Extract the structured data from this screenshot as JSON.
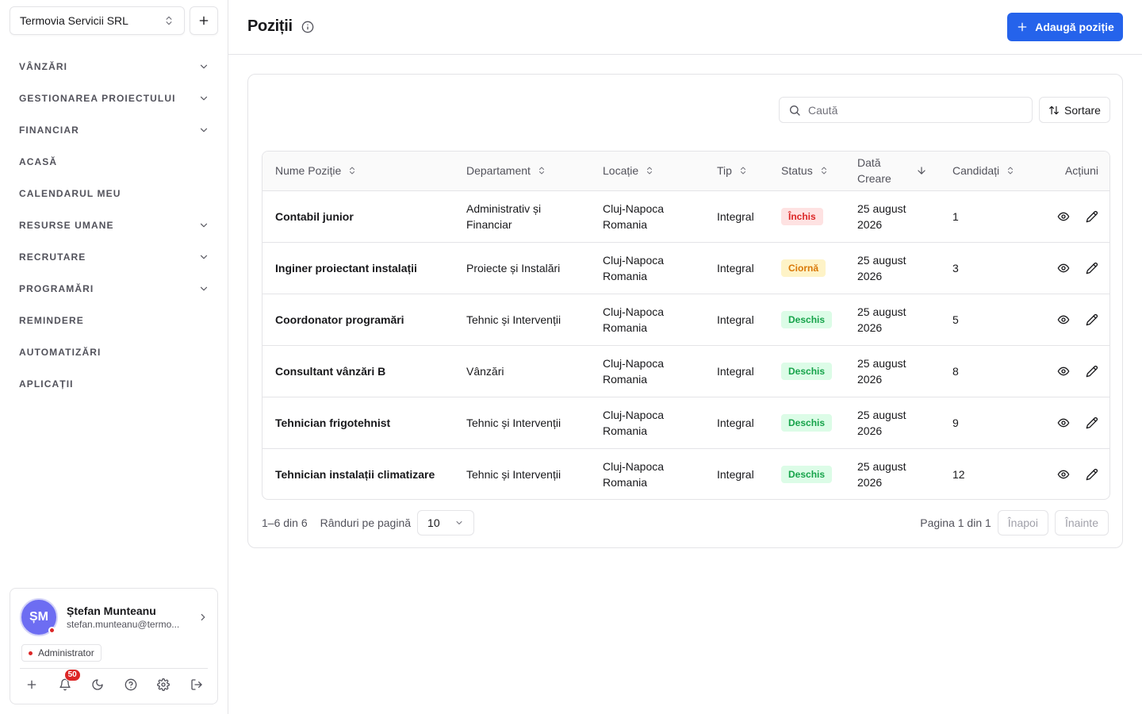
{
  "sidebar": {
    "org_name": "Termovia Servicii SRL",
    "nav": [
      {
        "label": "VÂNZĂRI",
        "has_chevron": true
      },
      {
        "label": "GESTIONAREA PROIECTULUI",
        "has_chevron": true
      },
      {
        "label": "FINANCIAR",
        "has_chevron": true
      },
      {
        "label": "ACASĂ",
        "has_chevron": false
      },
      {
        "label": "CALENDARUL MEU",
        "has_chevron": false
      },
      {
        "label": "RESURSE UMANE",
        "has_chevron": true
      },
      {
        "label": "RECRUTARE",
        "has_chevron": true
      },
      {
        "label": "PROGRAMĂRI",
        "has_chevron": true
      },
      {
        "label": "REMINDERE",
        "has_chevron": false
      },
      {
        "label": "AUTOMATIZĂRI",
        "has_chevron": false
      },
      {
        "label": "APLICAȚII",
        "has_chevron": false
      }
    ],
    "user": {
      "initials": "ȘM",
      "name": "Ștefan Munteanu",
      "email": "stefan.munteanu@termo...",
      "role": "Administrator",
      "notifications": "50"
    }
  },
  "header": {
    "title": "Poziții",
    "add_button": "Adaugă poziție"
  },
  "toolbar": {
    "search_placeholder": "Caută",
    "sort_label": "Sortare"
  },
  "table": {
    "columns": {
      "name": "Nume Poziție",
      "department": "Departament",
      "location": "Locație",
      "type": "Tip",
      "status": "Status",
      "created": "Dată Creare",
      "candidates": "Candidați",
      "actions": "Acțiuni"
    },
    "rows": [
      {
        "name": "Contabil junior",
        "department": "Administrativ și Financiar",
        "location": "Cluj-Napoca Romania",
        "type": "Integral",
        "status": "Închis",
        "created": "25 august 2026",
        "candidates": "1"
      },
      {
        "name": "Inginer proiectant instalații",
        "department": "Proiecte și Instalări",
        "location": "Cluj-Napoca Romania",
        "type": "Integral",
        "status": "Ciornă",
        "created": "25 august 2026",
        "candidates": "3"
      },
      {
        "name": "Coordonator programări",
        "department": "Tehnic și Intervenții",
        "location": "Cluj-Napoca Romania",
        "type": "Integral",
        "status": "Deschis",
        "created": "25 august 2026",
        "candidates": "5"
      },
      {
        "name": "Consultant vânzări B",
        "department": "Vânzări",
        "location": "Cluj-Napoca Romania",
        "type": "Integral",
        "status": "Deschis",
        "created": "25 august 2026",
        "candidates": "8"
      },
      {
        "name": "Tehnician frigotehnist",
        "department": "Tehnic și Intervenții",
        "location": "Cluj-Napoca Romania",
        "type": "Integral",
        "status": "Deschis",
        "created": "25 august 2026",
        "candidates": "9"
      },
      {
        "name": "Tehnician instalații climatizare",
        "department": "Tehnic și Intervenții",
        "location": "Cluj-Napoca Romania",
        "type": "Integral",
        "status": "Deschis",
        "created": "25 august 2026",
        "candidates": "12"
      }
    ],
    "status_colors": {
      "Închis": {
        "bg": "#fee2e2",
        "fg": "#dc2626"
      },
      "Ciornă": {
        "bg": "#fef3c7",
        "fg": "#d97706"
      },
      "Deschis": {
        "bg": "#dcfce7",
        "fg": "#16a34a"
      }
    }
  },
  "pagination": {
    "range": "1–6 din 6",
    "rows_per_page_label": "Rânduri pe pagină",
    "rows_per_page": "10",
    "page_info": "Pagina 1 din 1",
    "prev": "Înapoi",
    "next": "Înainte"
  },
  "colors": {
    "accent": "#2563eb",
    "avatar": "#6d6df2"
  }
}
